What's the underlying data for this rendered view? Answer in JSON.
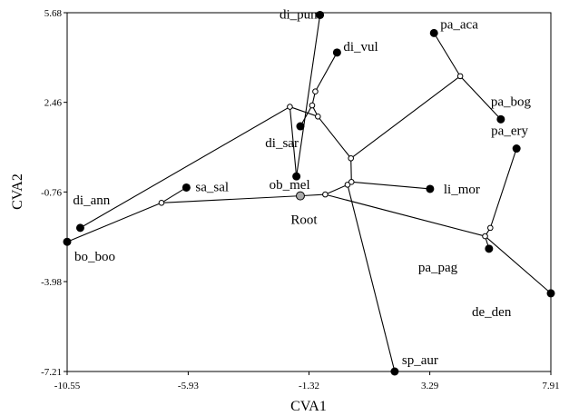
{
  "chart_data": {
    "type": "scatter",
    "subtype": "phylomorphospace",
    "xlabel": "CVA1",
    "ylabel": "CVA2",
    "xlim": [
      -10.55,
      7.91
    ],
    "ylim": [
      -7.21,
      5.68
    ],
    "xticks": [
      -10.55,
      -5.93,
      -1.32,
      3.29,
      7.91
    ],
    "xtick_labels": [
      "-10.55",
      "-5.93",
      "-1.32",
      "3.29",
      "7.91"
    ],
    "yticks": [
      -7.21,
      -3.98,
      -0.76,
      2.46,
      5.68
    ],
    "ytick_labels": [
      "-7.21",
      "-3.98",
      "-0.76",
      "2.46",
      "5.68"
    ],
    "grid": false,
    "tips": [
      {
        "label": "di_pun",
        "x": -0.9,
        "y": 5.6
      },
      {
        "label": "di_vul",
        "x": -0.25,
        "y": 4.25
      },
      {
        "label": "di_sar",
        "x": -1.65,
        "y": 1.6
      },
      {
        "label": "ob_mel",
        "x": -1.8,
        "y": -0.2
      },
      {
        "label": "sa_sal",
        "x": -6.0,
        "y": -0.6
      },
      {
        "label": "di_ann",
        "x": -10.05,
        "y": -2.05
      },
      {
        "label": "bo_boo",
        "x": -10.55,
        "y": -2.55
      },
      {
        "label": "sp_aur",
        "x": 1.95,
        "y": -7.21
      },
      {
        "label": "li_mor",
        "x": 3.3,
        "y": -0.65
      },
      {
        "label": "pa_aca",
        "x": 3.45,
        "y": 4.95
      },
      {
        "label": "pa_bog",
        "x": 6.0,
        "y": 1.85
      },
      {
        "label": "pa_ery",
        "x": 6.6,
        "y": 0.8
      },
      {
        "label": "pa_pag",
        "x": 5.55,
        "y": -2.8
      },
      {
        "label": "de_den",
        "x": 7.91,
        "y": -4.4
      }
    ],
    "root": {
      "label": "Root",
      "x": -1.65,
      "y": -0.9
    },
    "internal_nodes": [
      {
        "id": "n_left",
        "x": -6.95,
        "y": -1.15
      },
      {
        "id": "n_low",
        "x": -0.7,
        "y": -0.85
      },
      {
        "id": "n_sp",
        "x": 0.15,
        "y": -0.5
      },
      {
        "id": "n_li",
        "x": 0.3,
        "y": -0.4
      },
      {
        "id": "n_mid",
        "x": 0.28,
        "y": 0.45
      },
      {
        "id": "n_up",
        "x": -0.98,
        "y": 1.95
      },
      {
        "id": "n_up2",
        "x": -1.2,
        "y": 2.35
      },
      {
        "id": "n_dipun",
        "x": -1.08,
        "y": 2.85
      },
      {
        "id": "n_leftup",
        "x": -2.05,
        "y": 2.3
      },
      {
        "id": "n_pa",
        "x": 4.45,
        "y": 3.4
      },
      {
        "id": "n_pag",
        "x": 5.4,
        "y": -2.35
      },
      {
        "id": "n_pag2",
        "x": 5.6,
        "y": -2.05
      }
    ],
    "edges": [
      [
        "root",
        "n_left"
      ],
      [
        "n_left",
        "sa_sal"
      ],
      [
        "n_left",
        "bo_boo"
      ],
      [
        "root",
        "n_low"
      ],
      [
        "n_low",
        "n_sp"
      ],
      [
        "n_low",
        "n_pag"
      ],
      [
        "n_sp",
        "sp_aur"
      ],
      [
        "n_sp",
        "n_li"
      ],
      [
        "n_li",
        "li_mor"
      ],
      [
        "n_li",
        "n_mid"
      ],
      [
        "n_mid",
        "n_pa"
      ],
      [
        "n_pa",
        "pa_aca"
      ],
      [
        "n_pa",
        "pa_bog"
      ],
      [
        "n_mid",
        "n_up"
      ],
      [
        "n_up",
        "n_up2"
      ],
      [
        "n_up2",
        "di_sar"
      ],
      [
        "n_up2",
        "n_dipun"
      ],
      [
        "n_dipun",
        "di_vul"
      ],
      [
        "n_up",
        "n_leftup"
      ],
      [
        "n_leftup",
        "di_ann"
      ],
      [
        "n_leftup",
        "ob_mel"
      ],
      [
        "ob_mel",
        "di_pun"
      ],
      [
        "n_pag",
        "n_pag2"
      ],
      [
        "n_pag2",
        "pa_ery"
      ],
      [
        "n_pag",
        "pa_pag"
      ],
      [
        "n_pag",
        "de_den"
      ]
    ]
  }
}
